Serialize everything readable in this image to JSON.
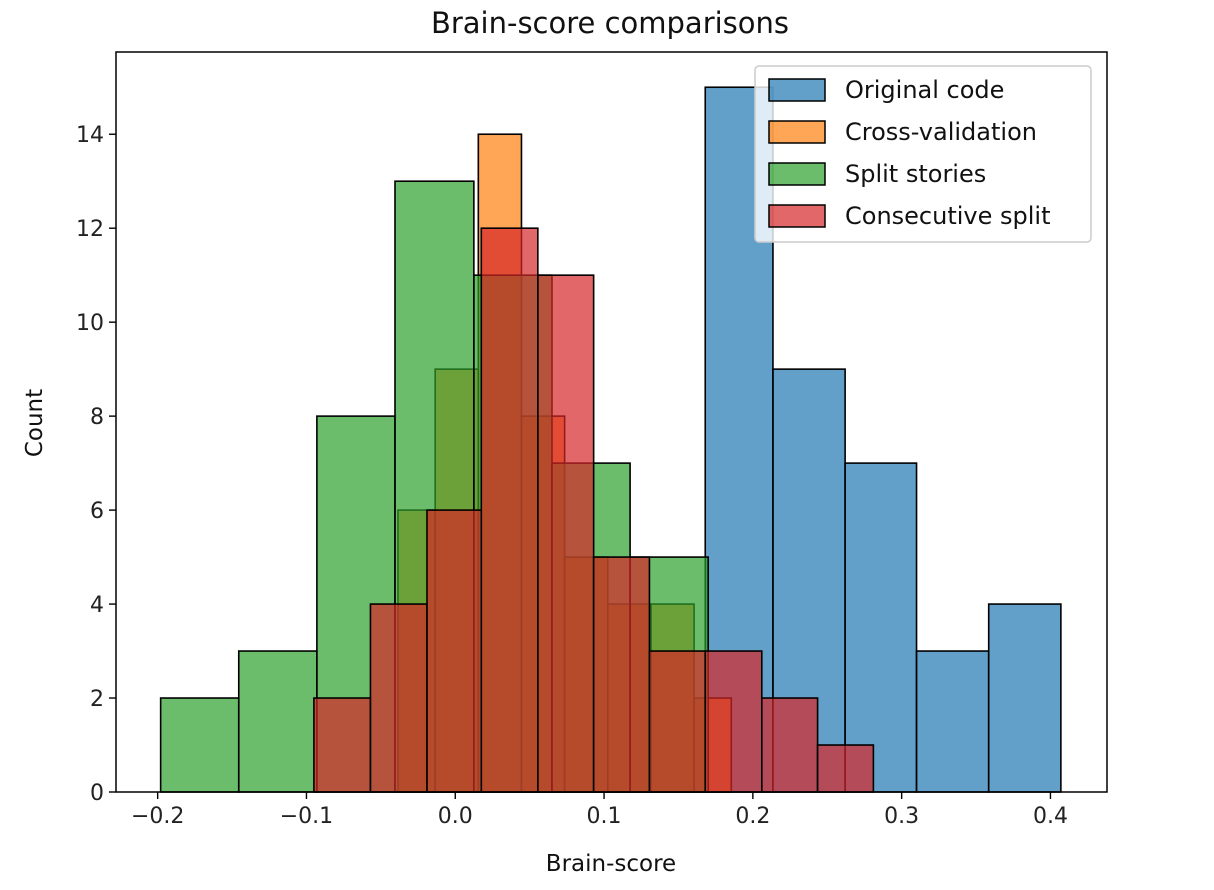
{
  "chart_data": {
    "type": "histogram",
    "title": "Brain-score comparisons",
    "xlabel": "Brain-score",
    "ylabel": "Count",
    "xlim": [
      -0.228,
      0.438
    ],
    "ylim": [
      0,
      15.75
    ],
    "xticks": [
      -0.2,
      -0.1,
      0.0,
      0.1,
      0.2,
      0.3,
      0.4
    ],
    "xtick_labels": [
      "−0.2",
      "−0.1",
      "0.0",
      "0.1",
      "0.2",
      "0.3",
      "0.4"
    ],
    "yticks": [
      0,
      2,
      4,
      6,
      8,
      10,
      12,
      14
    ],
    "ytick_labels": [
      "0",
      "2",
      "4",
      "6",
      "8",
      "10",
      "12",
      "14"
    ],
    "legend_position": "top-right",
    "grid": false,
    "series": [
      {
        "name": "Original code",
        "color": "#1f77b4",
        "bins": [
          {
            "x0": 0.168,
            "x1": 0.2135,
            "count": 15
          },
          {
            "x0": 0.2135,
            "x1": 0.262,
            "count": 9
          },
          {
            "x0": 0.262,
            "x1": 0.31,
            "count": 7
          },
          {
            "x0": 0.31,
            "x1": 0.3585,
            "count": 3
          },
          {
            "x0": 0.3585,
            "x1": 0.407,
            "count": 4
          }
        ]
      },
      {
        "name": "Cross-validation",
        "color": "#ff7f0e",
        "bins": [
          {
            "x0": -0.0385,
            "x1": -0.0135,
            "count": 6
          },
          {
            "x0": -0.0135,
            "x1": 0.0155,
            "count": 9
          },
          {
            "x0": 0.0155,
            "x1": 0.0445,
            "count": 14
          },
          {
            "x0": 0.0445,
            "x1": 0.0735,
            "count": 8
          },
          {
            "x0": 0.0735,
            "x1": 0.1025,
            "count": 5
          },
          {
            "x0": 0.1025,
            "x1": 0.1315,
            "count": 4
          },
          {
            "x0": 0.1315,
            "x1": 0.1605,
            "count": 4
          },
          {
            "x0": 0.1605,
            "x1": 0.1855,
            "count": 2
          }
        ]
      },
      {
        "name": "Split stories",
        "color": "#2ca02c",
        "bins": [
          {
            "x0": -0.198,
            "x1": -0.1455,
            "count": 2
          },
          {
            "x0": -0.1455,
            "x1": -0.093,
            "count": 3
          },
          {
            "x0": -0.093,
            "x1": -0.0405,
            "count": 8
          },
          {
            "x0": -0.0405,
            "x1": 0.0125,
            "count": 13
          },
          {
            "x0": 0.0125,
            "x1": 0.065,
            "count": 11
          },
          {
            "x0": 0.065,
            "x1": 0.1175,
            "count": 7
          },
          {
            "x0": 0.1175,
            "x1": 0.17,
            "count": 5
          }
        ]
      },
      {
        "name": "Consecutive split",
        "color": "#d62728",
        "bins": [
          {
            "x0": -0.095,
            "x1": -0.057,
            "count": 2
          },
          {
            "x0": -0.057,
            "x1": -0.019,
            "count": 4
          },
          {
            "x0": -0.019,
            "x1": 0.0175,
            "count": 6
          },
          {
            "x0": 0.0175,
            "x1": 0.0555,
            "count": 12
          },
          {
            "x0": 0.0555,
            "x1": 0.093,
            "count": 11
          },
          {
            "x0": 0.093,
            "x1": 0.1305,
            "count": 5
          },
          {
            "x0": 0.1305,
            "x1": 0.168,
            "count": 3
          },
          {
            "x0": 0.168,
            "x1": 0.206,
            "count": 3
          },
          {
            "x0": 0.206,
            "x1": 0.2435,
            "count": 2
          },
          {
            "x0": 0.2435,
            "x1": 0.281,
            "count": 1
          }
        ]
      }
    ]
  }
}
